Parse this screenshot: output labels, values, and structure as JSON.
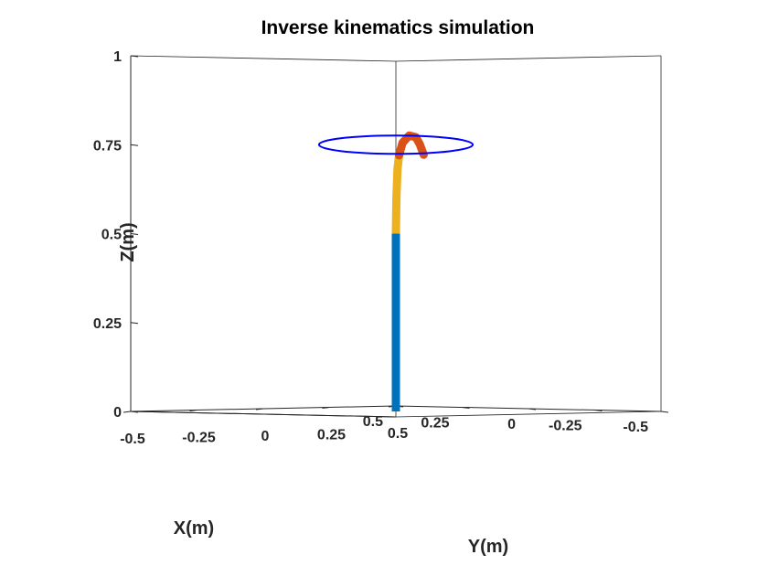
{
  "chart_data": {
    "type": "line",
    "title": "Inverse kinematics simulation",
    "xlabel": "X(m)",
    "ylabel": "Y(m)",
    "zlabel": "Z(m)",
    "xlim": [
      -0.5,
      0.5
    ],
    "ylim": [
      -0.5,
      0.5
    ],
    "zlim": [
      0,
      1
    ],
    "x_ticks": [
      "-0.5",
      "-0.25",
      "0",
      "0.25",
      "0.5"
    ],
    "y_ticks": [
      "-0.5",
      "-0.25",
      "0",
      "0.25",
      "0.5"
    ],
    "z_ticks": [
      "0",
      "0.25",
      "0.5",
      "0.75",
      "1"
    ],
    "grid": false,
    "box": true,
    "series": [
      {
        "color": "#0072BD",
        "points": [
          [
            0,
            0,
            0
          ],
          [
            0,
            0,
            0.5
          ]
        ]
      },
      {
        "color": "#EDB120",
        "points": [
          [
            0,
            0,
            0.5
          ],
          [
            0,
            0.002,
            0.6
          ],
          [
            0,
            0.006,
            0.68
          ],
          [
            0,
            0.012,
            0.72
          ]
        ]
      },
      {
        "color": "#D95319",
        "points": [
          [
            0,
            0.012,
            0.72
          ],
          [
            0,
            0.025,
            0.755
          ],
          [
            0,
            0.05,
            0.775
          ],
          [
            0,
            0.075,
            0.77
          ],
          [
            0,
            0.09,
            0.75
          ],
          [
            0,
            0.105,
            0.72
          ]
        ]
      },
      {
        "color": "#0000FF",
        "shape": "circle",
        "center": [
          0,
          0,
          0.75
        ],
        "radius": 0.25
      }
    ]
  }
}
